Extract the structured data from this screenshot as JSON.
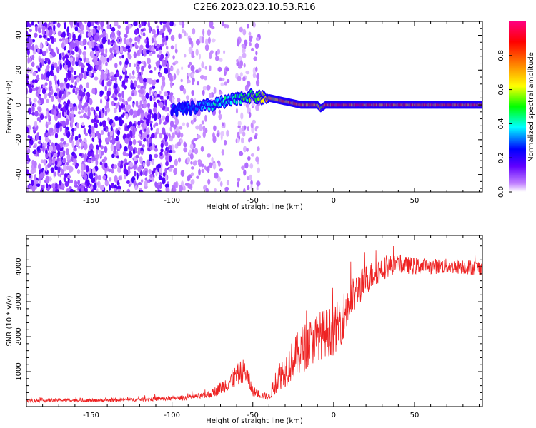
{
  "title": "C2E6.2023.023.10.53.R16",
  "chart_data": [
    {
      "type": "heatmap",
      "xlabel": "Height of straight line (km)",
      "ylabel": "Frequency (Hz)",
      "xlim": [
        -190,
        92
      ],
      "ylim": [
        -50,
        48
      ],
      "xticks": [
        -150,
        -100,
        -50,
        0,
        50
      ],
      "yticks": [
        -40,
        -20,
        0,
        20,
        40
      ],
      "colorbar": {
        "label": "Normalized spectral amplitude",
        "range": [
          0,
          1
        ],
        "ticks": [
          "0.0",
          "0.2",
          "0.4",
          "0.6",
          "0.8"
        ],
        "colors": [
          "#ffffff",
          "#8000ff",
          "#0000ff",
          "#00ffff",
          "#00ff00",
          "#ffff00",
          "#ff8000",
          "#ff0000",
          "#ff0080"
        ]
      },
      "signal_track": {
        "x": [
          -100,
          -90,
          -80,
          -70,
          -60,
          -55,
          -50,
          -45,
          -40,
          -35,
          -30,
          -25,
          -20,
          -15,
          -10,
          -8,
          -5,
          0,
          20,
          50,
          92
        ],
        "frequency_hz": [
          -3,
          -2,
          -1,
          1,
          3,
          5,
          5,
          4,
          4,
          3,
          2,
          1,
          0,
          0,
          0,
          -2,
          0,
          0,
          0,
          0,
          0
        ],
        "amplitude": [
          0.3,
          0.35,
          0.4,
          0.45,
          0.5,
          0.55,
          0.6,
          0.7,
          0.75,
          0.8,
          0.85,
          0.9,
          0.9,
          0.9,
          0.85,
          0.7,
          0.9,
          0.95,
          0.95,
          0.95,
          0.95
        ]
      },
      "noise_region_x": [
        -190,
        -85
      ]
    },
    {
      "type": "line",
      "xlabel": "Height of straight line (km)",
      "ylabel": "SNR (10 * v/v)",
      "xlim": [
        -190,
        92
      ],
      "ylim": [
        0,
        4900
      ],
      "xticks": [
        -150,
        -100,
        -50,
        0,
        50
      ],
      "yticks": [
        1000,
        2000,
        3000,
        4000
      ],
      "series": [
        {
          "color": "#ee2222",
          "x": [
            -190,
            -170,
            -150,
            -130,
            -110,
            -100,
            -90,
            -80,
            -75,
            -70,
            -65,
            -60,
            -57,
            -55,
            -52,
            -50,
            -45,
            -40,
            -37,
            -35,
            -30,
            -25,
            -20,
            -15,
            -10,
            -5,
            0,
            5,
            10,
            15,
            20,
            25,
            30,
            35,
            40,
            50,
            60,
            70,
            80,
            92
          ],
          "y": [
            150,
            170,
            160,
            180,
            200,
            220,
            240,
            280,
            350,
            480,
            620,
            780,
            900,
            950,
            600,
            400,
            300,
            250,
            500,
            700,
            900,
            1150,
            1400,
            1600,
            1800,
            1900,
            1950,
            2300,
            2800,
            3200,
            3500,
            3700,
            3850,
            3950,
            4000,
            3950,
            3950,
            3950,
            3950,
            3900
          ],
          "noise": [
            50,
            50,
            50,
            50,
            60,
            60,
            70,
            90,
            120,
            180,
            250,
            320,
            350,
            350,
            250,
            150,
            100,
            100,
            300,
            400,
            500,
            600,
            700,
            700,
            700,
            700,
            700,
            700,
            600,
            500,
            450,
            400,
            350,
            300,
            250,
            250,
            220,
            220,
            220,
            220
          ]
        }
      ]
    }
  ]
}
